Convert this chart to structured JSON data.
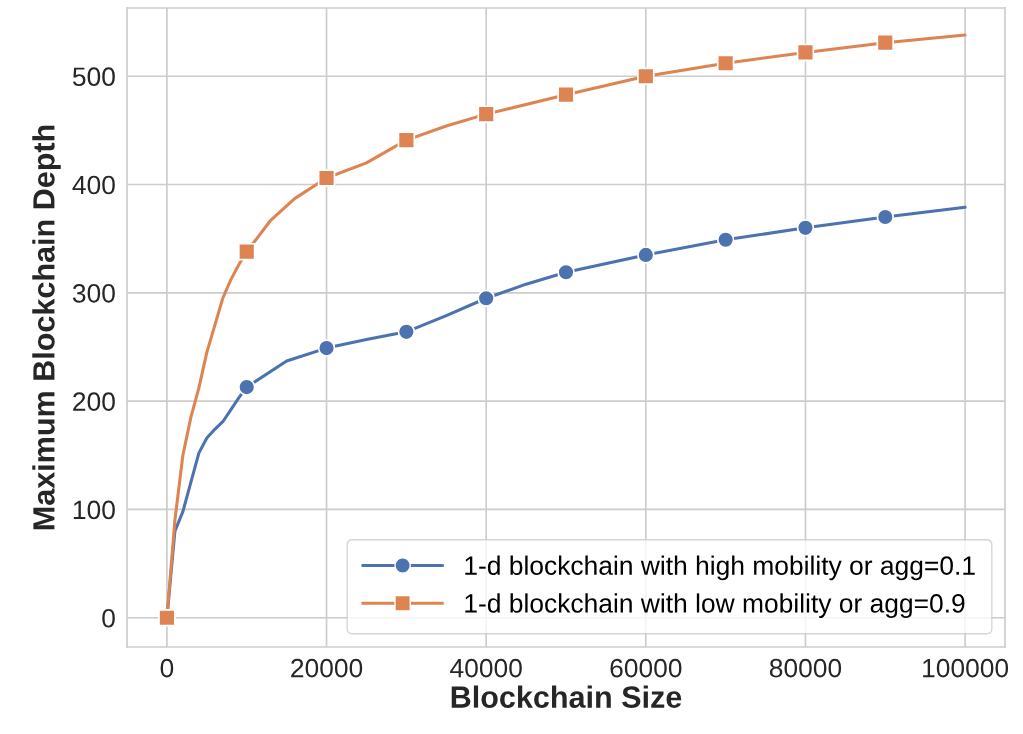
{
  "chart_data": {
    "type": "line",
    "xlabel": "Blockchain Size",
    "ylabel": "Maximum Blockchain Depth",
    "xlim": [
      -5000,
      105000
    ],
    "xticks": [
      0,
      20000,
      40000,
      60000,
      80000,
      100000
    ],
    "ylim": [
      -27,
      563
    ],
    "yticks": [
      0,
      100,
      200,
      300,
      400,
      500
    ],
    "grid": true,
    "legend": "bottom right",
    "series": [
      {
        "color": "#4c72b0",
        "marker": "none",
        "x": [
          0,
          1000,
          2000,
          3000,
          4000,
          5000,
          6000,
          7000,
          8000,
          9000,
          10000,
          15000,
          20000,
          25000,
          30000,
          35000,
          40000,
          45000,
          50000,
          60000,
          70000,
          80000,
          90000,
          100000
        ],
        "values": [
          0,
          80,
          98,
          125,
          152,
          166,
          174,
          181,
          192,
          203,
          213,
          237,
          249,
          257,
          264,
          279,
          295,
          308,
          319,
          335,
          349,
          360,
          370,
          379
        ]
      },
      {
        "color": "#dd8452",
        "marker": "none",
        "x": [
          0,
          1000,
          2000,
          3000,
          4000,
          5000,
          6000,
          7000,
          8000,
          9000,
          10000,
          13000,
          16000,
          20000,
          25000,
          30000,
          35000,
          40000,
          50000,
          60000,
          70000,
          80000,
          90000,
          100000
        ],
        "values": [
          0,
          90,
          150,
          185,
          212,
          245,
          270,
          295,
          312,
          326,
          338,
          367,
          387,
          406,
          420,
          441,
          454,
          465,
          483,
          500,
          512,
          522,
          531,
          538
        ]
      },
      {
        "type": "scatter",
        "name": "1-d blockchain with high mobility or agg=0.1",
        "color": "#4c72b0",
        "marker": "circle",
        "x": [
          10000,
          20000,
          30000,
          40000,
          50000,
          60000,
          70000,
          80000,
          90000
        ],
        "values": [
          213,
          249,
          264,
          295,
          319,
          335,
          349,
          360,
          370
        ]
      },
      {
        "type": "scatter",
        "name": "1-d blockchain with low mobility or agg=0.9",
        "color": "#dd8452",
        "marker": "square",
        "x": [
          0,
          10000,
          20000,
          30000,
          40000,
          50000,
          60000,
          70000,
          80000,
          90000
        ],
        "values": [
          0,
          338,
          406,
          441,
          465,
          483,
          500,
          512,
          522,
          531
        ]
      }
    ]
  }
}
